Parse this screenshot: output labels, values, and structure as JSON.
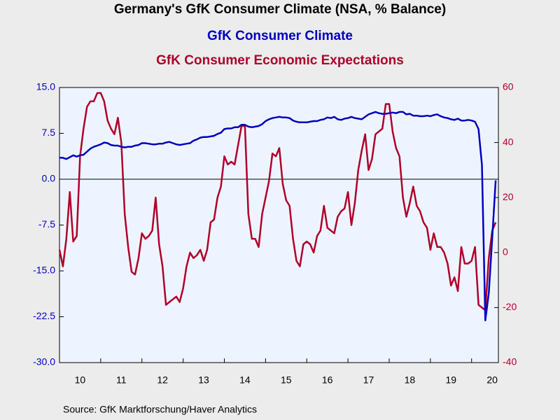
{
  "chart_data": {
    "type": "line",
    "title": "Germany's GfK Consumer Climate (NSA, % Balance)",
    "source": "Source:  GfK Marktforschung/Haver Analytics",
    "x": [
      2010,
      2010.083,
      2010.167,
      2010.25,
      2010.333,
      2010.417,
      2010.5,
      2010.583,
      2010.667,
      2010.75,
      2010.833,
      2010.917,
      2011,
      2011.083,
      2011.167,
      2011.25,
      2011.333,
      2011.417,
      2011.5,
      2011.583,
      2011.667,
      2011.75,
      2011.833,
      2011.917,
      2012,
      2012.083,
      2012.167,
      2012.25,
      2012.333,
      2012.417,
      2012.5,
      2012.583,
      2012.667,
      2012.75,
      2012.833,
      2012.917,
      2013,
      2013.083,
      2013.167,
      2013.25,
      2013.333,
      2013.417,
      2013.5,
      2013.583,
      2013.667,
      2013.75,
      2013.833,
      2013.917,
      2014,
      2014.083,
      2014.167,
      2014.25,
      2014.333,
      2014.417,
      2014.5,
      2014.583,
      2014.667,
      2014.75,
      2014.833,
      2014.917,
      2015,
      2015.083,
      2015.167,
      2015.25,
      2015.333,
      2015.417,
      2015.5,
      2015.583,
      2015.667,
      2015.75,
      2015.833,
      2015.917,
      2016,
      2016.083,
      2016.167,
      2016.25,
      2016.333,
      2016.417,
      2016.5,
      2016.583,
      2016.667,
      2016.75,
      2016.833,
      2016.917,
      2017,
      2017.083,
      2017.167,
      2017.25,
      2017.333,
      2017.417,
      2017.5,
      2017.583,
      2017.667,
      2017.75,
      2017.833,
      2017.917,
      2018,
      2018.083,
      2018.167,
      2018.25,
      2018.333,
      2018.417,
      2018.5,
      2018.583,
      2018.667,
      2018.75,
      2018.833,
      2018.917,
      2019,
      2019.083,
      2019.167,
      2019.25,
      2019.333,
      2019.417,
      2019.5,
      2019.583,
      2019.667,
      2019.75,
      2019.833,
      2019.917,
      2020,
      2020.083,
      2020.167,
      2020.25,
      2020.333,
      2020.417,
      2020.5,
      2020.583
    ],
    "series": [
      {
        "name": "GfK Consumer Climate",
        "color": "#0000c0",
        "axis": "y",
        "values": [
          3.5,
          3.5,
          3.3,
          3.6,
          3.9,
          3.7,
          3.9,
          4.0,
          4.5,
          5.0,
          5.3,
          5.5,
          5.7,
          6.0,
          5.9,
          5.6,
          5.5,
          5.5,
          5.3,
          5.2,
          5.3,
          5.3,
          5.5,
          5.6,
          5.9,
          5.9,
          5.8,
          5.7,
          5.7,
          5.8,
          5.8,
          6.0,
          6.1,
          5.9,
          5.7,
          5.6,
          5.7,
          5.8,
          5.9,
          6.3,
          6.5,
          6.8,
          6.9,
          6.9,
          7.0,
          7.1,
          7.4,
          7.6,
          8.2,
          8.3,
          8.3,
          8.5,
          8.5,
          8.9,
          8.9,
          8.6,
          8.5,
          8.6,
          8.7,
          9.0,
          9.5,
          9.8,
          10.0,
          10.1,
          10.2,
          10.1,
          10.1,
          10.0,
          9.6,
          9.4,
          9.3,
          9.3,
          9.3,
          9.4,
          9.5,
          9.5,
          9.7,
          9.8,
          10.1,
          10.0,
          10.2,
          9.8,
          9.7,
          9.9,
          10.0,
          10.2,
          10.0,
          9.9,
          9.8,
          10.2,
          10.6,
          10.8,
          11.0,
          10.8,
          10.7,
          10.7,
          10.8,
          10.9,
          10.8,
          11.0,
          11.0,
          10.6,
          10.7,
          10.4,
          10.4,
          10.3,
          10.3,
          10.4,
          10.3,
          10.5,
          10.6,
          10.3,
          10.1,
          10.0,
          9.8,
          9.7,
          9.9,
          9.6,
          9.6,
          9.7,
          9.6,
          9.4,
          8.2,
          2.3,
          -23.1,
          -18.6,
          -9.6,
          -0.2
        ]
      },
      {
        "name": "GfK Consumer Economic Expectations",
        "color": "#b0002a",
        "axis": "y2",
        "values": [
          1,
          -5,
          5,
          22,
          4,
          6,
          35,
          45,
          53,
          55,
          55,
          58,
          58,
          55,
          48,
          45,
          43,
          49,
          40,
          14,
          2,
          -7,
          -8,
          -2,
          7,
          5,
          6,
          8,
          20,
          3,
          -5,
          -19,
          -18,
          -17,
          -16,
          -18,
          -13,
          -5,
          0,
          -2,
          -1,
          1,
          -3,
          1,
          11,
          12,
          20,
          24,
          35,
          32,
          33,
          32,
          39,
          46,
          46,
          14,
          5,
          5,
          2,
          14,
          20,
          26,
          36,
          35,
          38,
          25,
          19,
          17,
          5,
          -3,
          -5,
          3,
          4,
          3,
          0,
          6,
          8,
          17,
          9,
          8,
          7,
          13,
          15,
          16,
          22,
          10,
          18,
          30,
          37,
          43,
          30,
          34,
          43,
          44,
          45,
          54,
          54,
          44,
          38,
          35,
          20,
          13,
          18,
          24,
          17,
          15,
          11,
          9,
          1,
          7,
          2,
          2,
          0,
          -4,
          -12,
          -9,
          -14,
          2,
          -4,
          -4,
          -3,
          2,
          -19,
          -20,
          -21,
          -2,
          8,
          11
        ]
      }
    ],
    "xlim": [
      2010,
      2020.65
    ],
    "xticks": [
      {
        "value": 2010,
        "label": "10"
      },
      {
        "value": 2011,
        "label": "11"
      },
      {
        "value": 2012,
        "label": "12"
      },
      {
        "value": 2013,
        "label": "13"
      },
      {
        "value": 2014,
        "label": "14"
      },
      {
        "value": 2015,
        "label": "15"
      },
      {
        "value": 2016,
        "label": "16"
      },
      {
        "value": 2017,
        "label": "17"
      },
      {
        "value": 2018,
        "label": "18"
      },
      {
        "value": 2019,
        "label": "19"
      },
      {
        "value": 2020,
        "label": "20"
      }
    ],
    "ylim": [
      -30,
      15
    ],
    "yticks": [
      {
        "value": 15,
        "label": "15.0"
      },
      7.5,
      {
        "value": 0,
        "label": "0.0"
      },
      -7.5,
      {
        "value": -15,
        "label": "-15.0"
      },
      -22.5,
      {
        "value": -30,
        "label": "-30.0"
      }
    ],
    "y2lim": [
      -40,
      60
    ],
    "y2ticks": [
      60,
      40,
      20,
      0,
      -20,
      -40
    ],
    "zero_line": 0
  }
}
